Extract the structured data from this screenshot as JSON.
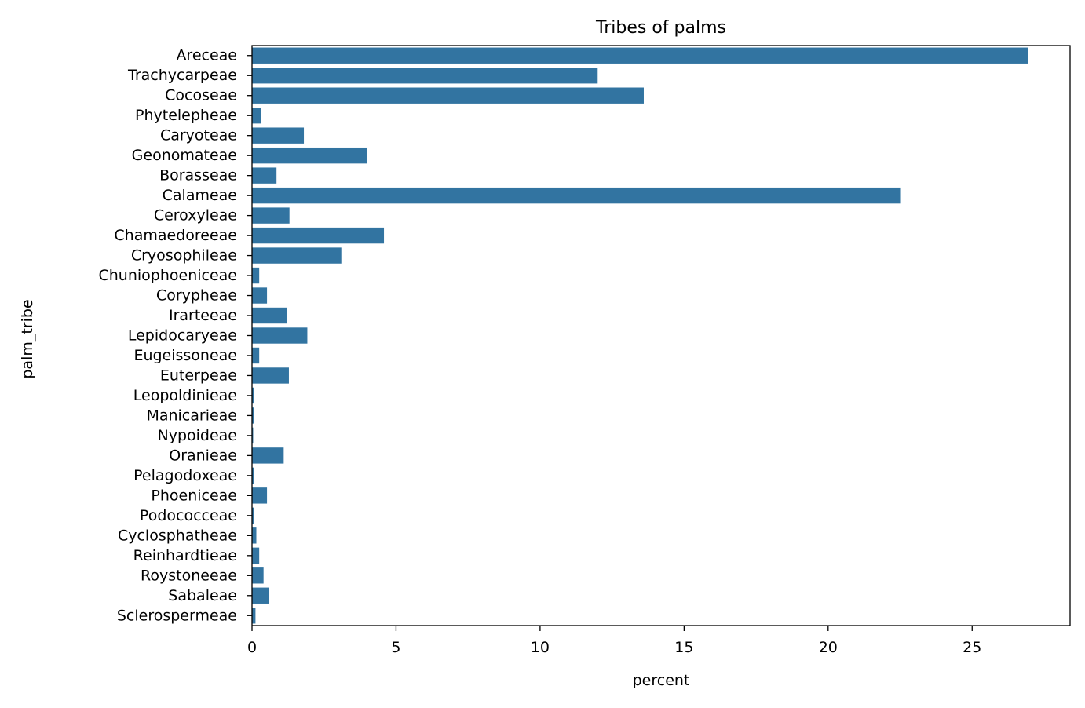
{
  "chart_data": {
    "type": "bar",
    "orientation": "horizontal",
    "title": "Tribes of palms",
    "xlabel": "percent",
    "ylabel": "palm_tribe",
    "xlim": [
      0,
      28.4
    ],
    "xticks": [
      0,
      5,
      10,
      15,
      20,
      25
    ],
    "grid": false,
    "legend": "none",
    "bar_color": "#3274a1",
    "categories": [
      "Areceae",
      "Trachycarpeae",
      "Cocoseae",
      "Phytelepheae",
      "Caryoteae",
      "Geonomateae",
      "Borasseae",
      "Calameae",
      "Ceroxyleae",
      "Chamaedoreeae",
      "Cryosophileae",
      "Chuniophoeniceae",
      "Corypheae",
      "Irarteeae",
      "Lepidocaryeae",
      "Eugeissoneae",
      "Euterpeae",
      "Leopoldinieae",
      "Manicarieae",
      "Nypoideae",
      "Oranieae",
      "Pelagodoxeae",
      "Phoeniceae",
      "Podococceae",
      "Cyclosphatheae",
      "Reinhardtieae",
      "Roystoneeae",
      "Sabaleae",
      "Sclerospermeae"
    ],
    "values": [
      26.95,
      12.0,
      13.6,
      0.31,
      1.8,
      3.98,
      0.85,
      22.5,
      1.3,
      4.58,
      3.1,
      0.25,
      0.52,
      1.2,
      1.92,
      0.25,
      1.28,
      0.08,
      0.08,
      0.04,
      1.1,
      0.08,
      0.52,
      0.08,
      0.15,
      0.25,
      0.4,
      0.6,
      0.12
    ]
  }
}
